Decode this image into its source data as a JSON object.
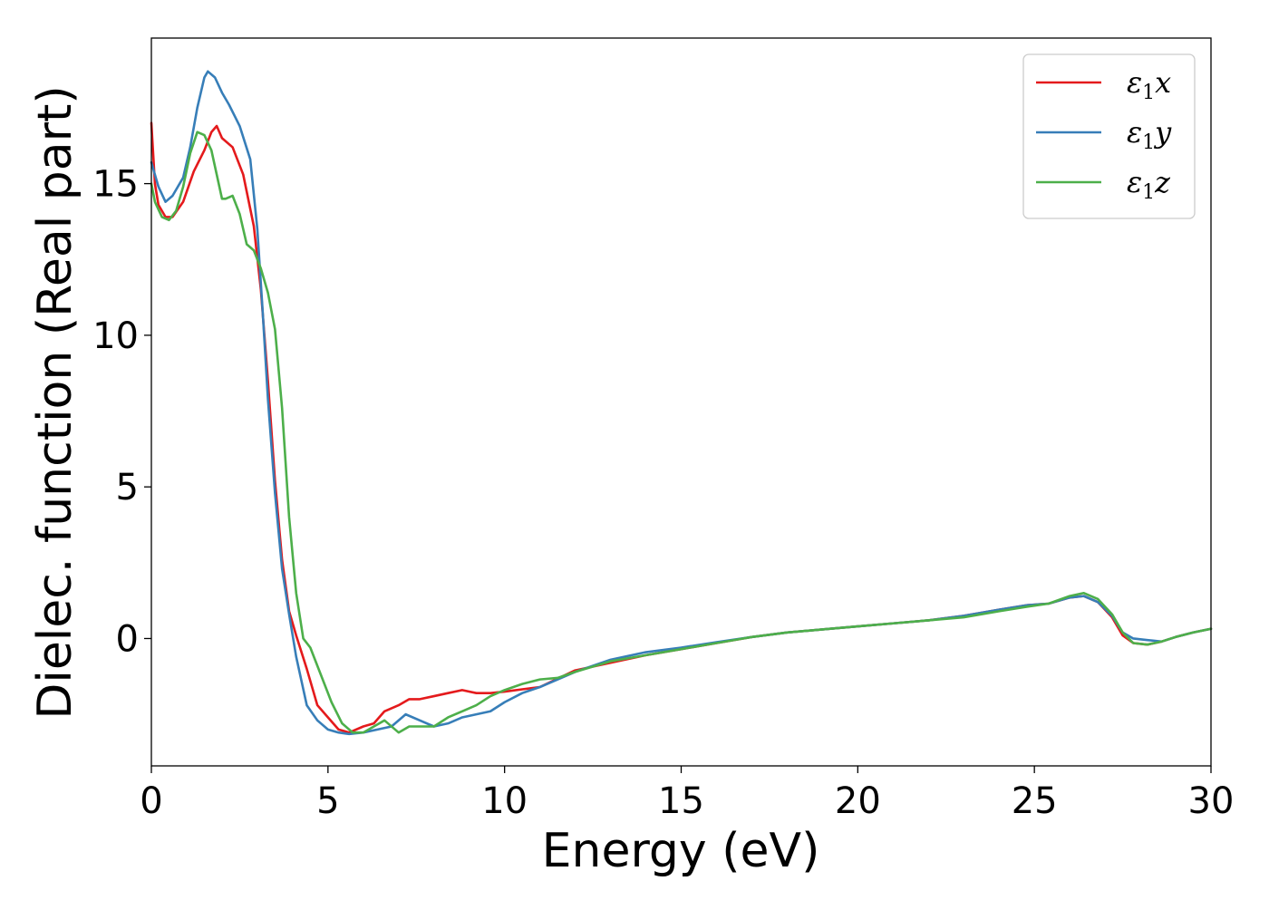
{
  "chart_data": {
    "type": "line",
    "title": "",
    "xlabel": "Energy (eV)",
    "ylabel": "Dielec. function (Real part)",
    "xlim": [
      0,
      30
    ],
    "ylim": [
      -4.2,
      19.8
    ],
    "xticks": [
      0,
      5,
      10,
      15,
      20,
      25,
      30
    ],
    "yticks": [
      0,
      5,
      10,
      15
    ],
    "grid": false,
    "legend_position": "top-right",
    "series": [
      {
        "name": "ε1x",
        "label_base": "ε",
        "label_sub": "1",
        "label_tail": "x",
        "color": "#e41a1c",
        "x": [
          0.0,
          0.1,
          0.2,
          0.4,
          0.6,
          0.9,
          1.2,
          1.5,
          1.7,
          1.85,
          2.0,
          2.3,
          2.6,
          2.9,
          3.1,
          3.3,
          3.5,
          3.7,
          3.9,
          4.1,
          4.4,
          4.7,
          5.0,
          5.3,
          5.6,
          6.0,
          6.3,
          6.6,
          7.0,
          7.3,
          7.6,
          8.0,
          8.4,
          8.8,
          9.2,
          9.6,
          10.0,
          11.0,
          12.0,
          13.0,
          14.0,
          15.0,
          16.0,
          17.0,
          18.0,
          19.0,
          20.0,
          21.0,
          22.0,
          23.0,
          24.0,
          24.8,
          25.4,
          26.0,
          26.4,
          26.8,
          27.2,
          27.5,
          27.8,
          28.2,
          28.6,
          29.0,
          29.5,
          30.0
        ],
        "y": [
          17.0,
          15.0,
          14.3,
          13.9,
          13.9,
          14.4,
          15.4,
          16.1,
          16.7,
          16.9,
          16.5,
          16.2,
          15.3,
          13.6,
          11.5,
          8.5,
          5.2,
          2.6,
          0.9,
          0.1,
          -1.0,
          -2.2,
          -2.6,
          -3.0,
          -3.1,
          -2.9,
          -2.8,
          -2.4,
          -2.2,
          -2.0,
          -2.0,
          -1.9,
          -1.8,
          -1.7,
          -1.8,
          -1.8,
          -1.75,
          -1.6,
          -1.05,
          -0.8,
          -0.55,
          -0.35,
          -0.15,
          0.05,
          0.2,
          0.3,
          0.4,
          0.5,
          0.6,
          0.75,
          0.95,
          1.1,
          1.15,
          1.35,
          1.4,
          1.2,
          0.7,
          0.1,
          -0.15,
          -0.2,
          -0.1,
          0.05,
          0.2,
          0.32
        ]
      },
      {
        "name": "ε1y",
        "label_base": "ε",
        "label_sub": "1",
        "label_tail": "y",
        "color": "#377eb8",
        "x": [
          0.0,
          0.2,
          0.4,
          0.6,
          0.9,
          1.1,
          1.3,
          1.5,
          1.6,
          1.8,
          2.0,
          2.2,
          2.5,
          2.8,
          3.0,
          3.15,
          3.3,
          3.5,
          3.7,
          3.9,
          4.1,
          4.4,
          4.7,
          5.0,
          5.3,
          5.6,
          6.0,
          6.4,
          6.8,
          7.2,
          7.6,
          8.0,
          8.4,
          8.8,
          9.2,
          9.6,
          10.0,
          10.5,
          11.0,
          12.0,
          13.0,
          14.0,
          15.0,
          16.0,
          17.0,
          18.0,
          19.0,
          20.0,
          21.0,
          22.0,
          23.0,
          24.0,
          24.8,
          25.4,
          26.0,
          26.4,
          26.8,
          27.2,
          27.5,
          27.8,
          28.2,
          28.6,
          29.0,
          29.5,
          30.0
        ],
        "y": [
          15.7,
          14.9,
          14.4,
          14.6,
          15.2,
          16.2,
          17.5,
          18.5,
          18.7,
          18.5,
          18.0,
          17.6,
          16.9,
          15.8,
          13.5,
          10.8,
          7.9,
          4.8,
          2.3,
          0.8,
          -0.6,
          -2.2,
          -2.7,
          -3.0,
          -3.1,
          -3.15,
          -3.1,
          -3.0,
          -2.9,
          -2.5,
          -2.7,
          -2.9,
          -2.8,
          -2.6,
          -2.5,
          -2.4,
          -2.1,
          -1.8,
          -1.6,
          -1.1,
          -0.7,
          -0.45,
          -0.3,
          -0.12,
          0.05,
          0.2,
          0.3,
          0.4,
          0.5,
          0.6,
          0.75,
          0.95,
          1.1,
          1.15,
          1.35,
          1.4,
          1.2,
          0.75,
          0.2,
          0.0,
          -0.05,
          -0.1,
          0.05,
          0.2,
          0.32
        ]
      },
      {
        "name": "ε1z",
        "label_base": "ε",
        "label_sub": "1",
        "label_tail": "z",
        "color": "#4daf4a",
        "x": [
          0.0,
          0.1,
          0.3,
          0.5,
          0.7,
          0.9,
          1.1,
          1.3,
          1.5,
          1.7,
          1.85,
          2.0,
          2.1,
          2.3,
          2.5,
          2.7,
          2.9,
          3.1,
          3.3,
          3.5,
          3.7,
          3.9,
          4.1,
          4.3,
          4.5,
          4.8,
          5.1,
          5.4,
          5.7,
          6.0,
          6.3,
          6.6,
          7.0,
          7.3,
          7.6,
          8.0,
          8.4,
          8.8,
          9.2,
          9.6,
          10.0,
          10.5,
          11.0,
          11.5,
          12.0,
          13.0,
          14.0,
          15.0,
          16.0,
          17.0,
          18.0,
          19.0,
          20.0,
          21.0,
          22.0,
          23.0,
          24.0,
          24.8,
          25.4,
          26.0,
          26.4,
          26.8,
          27.2,
          27.5,
          27.8,
          28.2,
          28.6,
          29.0,
          29.5,
          30.0
        ],
        "y": [
          15.0,
          14.4,
          13.9,
          13.8,
          14.1,
          14.9,
          16.0,
          16.7,
          16.6,
          16.1,
          15.3,
          14.5,
          14.5,
          14.6,
          14.0,
          13.0,
          12.8,
          12.2,
          11.4,
          10.2,
          7.6,
          4.0,
          1.5,
          0.0,
          -0.3,
          -1.2,
          -2.1,
          -2.8,
          -3.1,
          -3.1,
          -2.9,
          -2.7,
          -3.1,
          -2.9,
          -2.9,
          -2.9,
          -2.6,
          -2.4,
          -2.2,
          -1.9,
          -1.7,
          -1.5,
          -1.35,
          -1.3,
          -1.1,
          -0.75,
          -0.55,
          -0.35,
          -0.15,
          0.05,
          0.2,
          0.3,
          0.4,
          0.5,
          0.6,
          0.7,
          0.9,
          1.05,
          1.15,
          1.4,
          1.5,
          1.3,
          0.8,
          0.2,
          -0.15,
          -0.2,
          -0.1,
          0.05,
          0.2,
          0.32
        ]
      }
    ]
  }
}
